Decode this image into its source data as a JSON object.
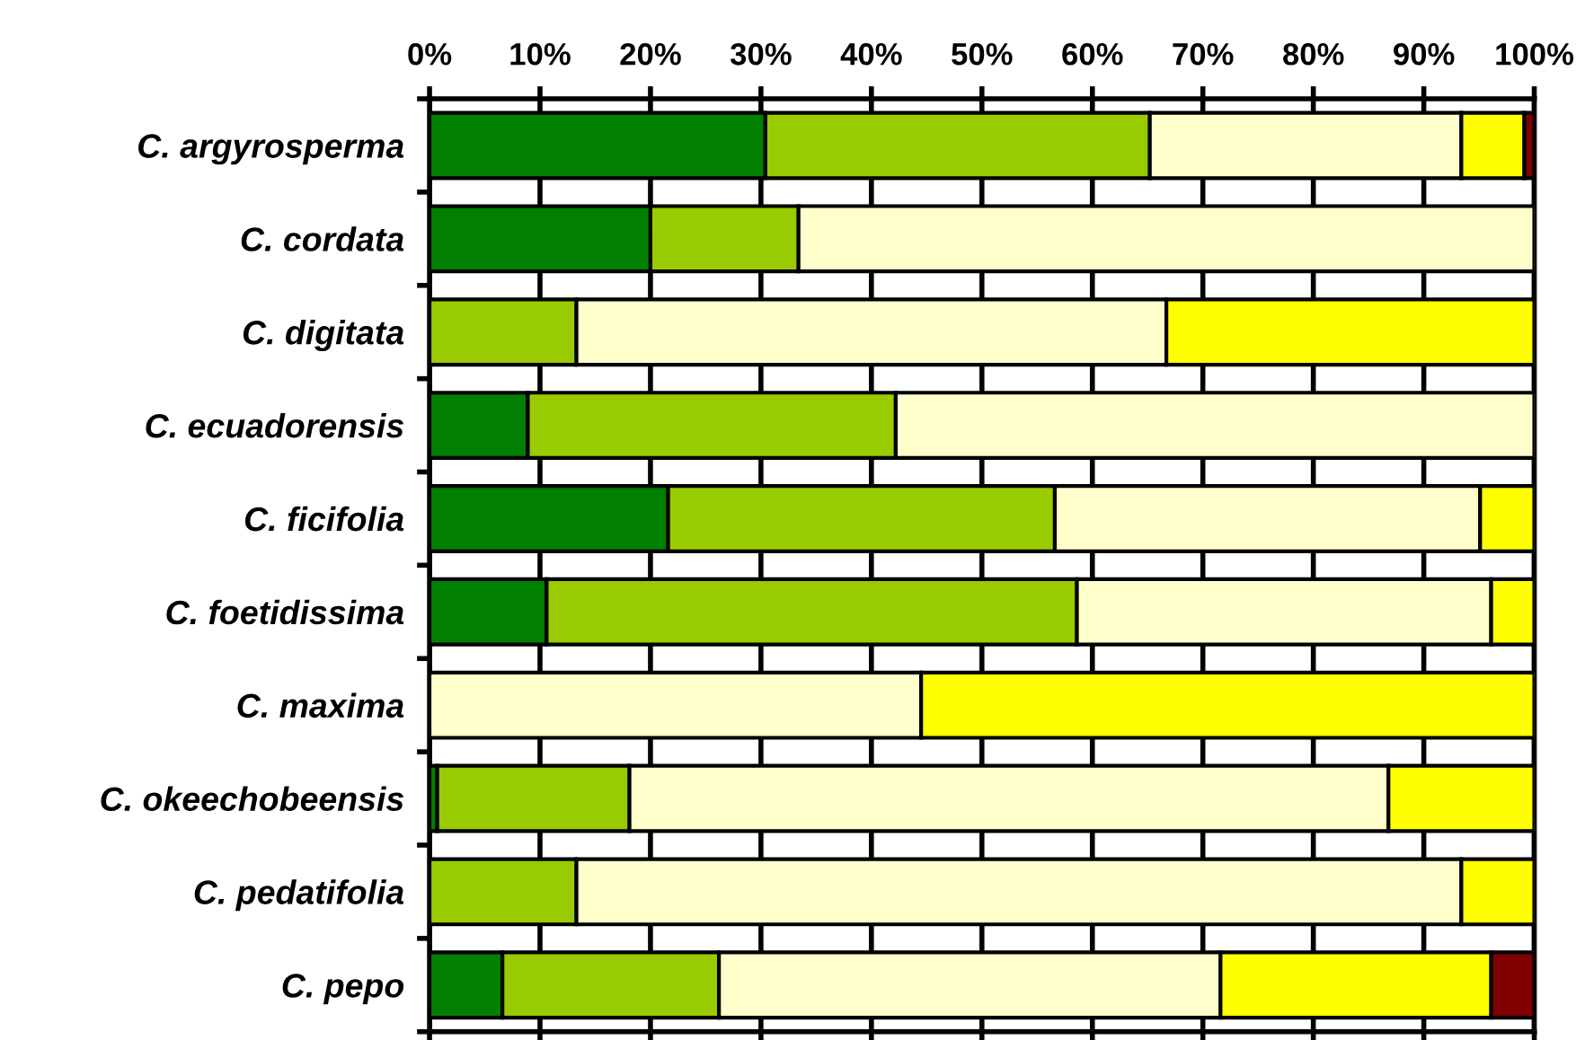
{
  "chart_data": {
    "type": "bar",
    "orientation": "horizontal",
    "stacked": true,
    "categories": [
      "C. argyrosperma",
      "C. cordata",
      "C. digitata",
      "C. ecuadorensis",
      "C. ficifolia",
      "C. foetidissima",
      "C. maxima",
      "C. okeechobeensis",
      "C. pedatifolia",
      "C. pepo"
    ],
    "series": [
      {
        "color": "#007f00",
        "values": [
          30.4,
          20.0,
          0,
          8.9,
          21.6,
          10.6,
          0,
          0.7,
          0,
          6.6
        ]
      },
      {
        "color": "#99cc00",
        "values": [
          34.8,
          13.4,
          13.3,
          33.3,
          35.0,
          48.0,
          0,
          17.4,
          13.3,
          19.6
        ]
      },
      {
        "color": "#ffffcc",
        "values": [
          28.2,
          66.6,
          53.4,
          57.8,
          38.5,
          37.5,
          44.5,
          68.7,
          80.1,
          45.4
        ]
      },
      {
        "color": "#ffff00",
        "values": [
          5.7,
          0,
          33.3,
          0,
          4.9,
          3.9,
          55.5,
          13.2,
          6.6,
          24.5
        ]
      },
      {
        "color": "#800000",
        "values": [
          0.9,
          0,
          0,
          0,
          0,
          0,
          0,
          0,
          0,
          3.9
        ]
      }
    ],
    "xlim": [
      0,
      100
    ],
    "xticks": [
      {
        "value": 0,
        "label": "0%"
      },
      {
        "value": 10,
        "label": "10%"
      },
      {
        "value": 20,
        "label": "20%"
      },
      {
        "value": 30,
        "label": "30%"
      },
      {
        "value": 40,
        "label": "40%"
      },
      {
        "value": 50,
        "label": "50%"
      },
      {
        "value": 60,
        "label": "60%"
      },
      {
        "value": 70,
        "label": "70%"
      },
      {
        "value": 80,
        "label": "80%"
      },
      {
        "value": 90,
        "label": "90%"
      },
      {
        "value": 100,
        "label": "100%"
      }
    ],
    "grid": "x",
    "legend": false
  }
}
